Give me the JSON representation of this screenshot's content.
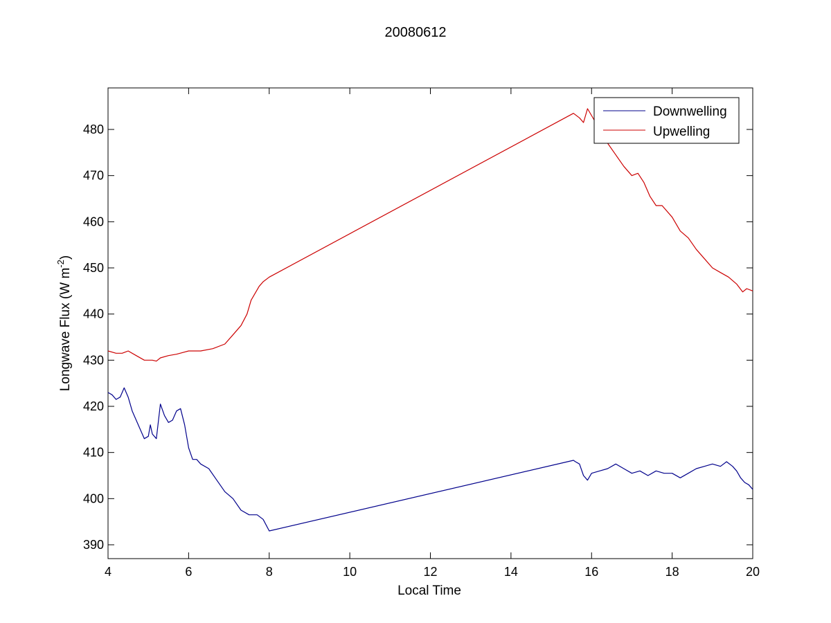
{
  "chart_data": {
    "type": "line",
    "title": "20080612",
    "xlabel": "Local Time",
    "ylabel": {
      "main": "Longwave Flux (W m",
      "superscript": "-2",
      "close": ")"
    },
    "xlim": [
      4,
      20
    ],
    "ylim": [
      387,
      489
    ],
    "xticks": [
      4,
      6,
      8,
      10,
      12,
      14,
      16,
      18,
      20
    ],
    "yticks": [
      390,
      400,
      410,
      420,
      430,
      440,
      450,
      460,
      470,
      480
    ],
    "grid": false,
    "legend_position": "top-right",
    "series": [
      {
        "name": "Downwelling",
        "color": "#00008b",
        "x": [
          4.0,
          4.1,
          4.2,
          4.3,
          4.4,
          4.5,
          4.6,
          4.7,
          4.8,
          4.9,
          5.0,
          5.05,
          5.1,
          5.2,
          5.3,
          5.4,
          5.5,
          5.6,
          5.7,
          5.8,
          5.9,
          6.0,
          6.1,
          6.2,
          6.3,
          6.5,
          6.7,
          6.9,
          7.1,
          7.3,
          7.5,
          7.7,
          7.85,
          8.0,
          15.55,
          15.6,
          15.7,
          15.8,
          15.9,
          16.0,
          16.2,
          16.4,
          16.6,
          16.8,
          17.0,
          17.2,
          17.4,
          17.6,
          17.8,
          18.0,
          18.2,
          18.4,
          18.6,
          18.8,
          19.0,
          19.2,
          19.35,
          19.5,
          19.6,
          19.7,
          19.8,
          19.9,
          20.0
        ],
        "y": [
          423,
          422.5,
          421.5,
          422,
          424,
          422,
          419,
          417,
          415,
          413,
          413.5,
          416,
          414,
          413,
          420.5,
          418,
          416.5,
          417,
          419,
          419.5,
          416,
          411,
          408.5,
          408.5,
          407.5,
          406.5,
          404,
          401.5,
          400,
          397.5,
          396.5,
          396.5,
          395.5,
          393,
          408.3,
          408,
          407.5,
          405,
          404,
          405.5,
          406,
          406.5,
          407.5,
          406.5,
          405.5,
          406,
          405,
          406,
          405.5,
          405.5,
          404.5,
          405.5,
          406.5,
          407,
          407.5,
          407,
          408,
          407,
          406,
          404.5,
          403.5,
          403,
          402
        ]
      },
      {
        "name": "Upwelling",
        "color": "#cc0000",
        "x": [
          4.0,
          4.2,
          4.35,
          4.5,
          4.7,
          4.9,
          5.0,
          5.1,
          5.2,
          5.3,
          5.5,
          5.7,
          6.0,
          6.3,
          6.6,
          6.9,
          7.1,
          7.3,
          7.45,
          7.55,
          7.65,
          7.75,
          7.85,
          8.0,
          15.55,
          15.7,
          15.8,
          15.9,
          16.0,
          16.2,
          16.4,
          16.6,
          16.8,
          17.0,
          17.15,
          17.3,
          17.45,
          17.6,
          17.75,
          18.0,
          18.2,
          18.4,
          18.6,
          18.8,
          19.0,
          19.2,
          19.4,
          19.6,
          19.75,
          19.85,
          20.0
        ],
        "y": [
          432,
          431.5,
          431.5,
          432,
          431,
          430,
          430,
          430,
          429.8,
          430.5,
          431,
          431.3,
          432,
          432,
          432.5,
          433.5,
          435.5,
          437.5,
          440,
          443,
          444.5,
          446,
          447,
          448,
          483.5,
          482.5,
          481.5,
          484.5,
          483,
          480,
          477,
          474.5,
          472,
          470,
          470.5,
          468.5,
          465.5,
          463.5,
          463.5,
          461,
          458,
          456.5,
          454,
          452,
          450,
          449,
          448,
          446.5,
          444.8,
          445.5,
          445
        ]
      }
    ]
  }
}
